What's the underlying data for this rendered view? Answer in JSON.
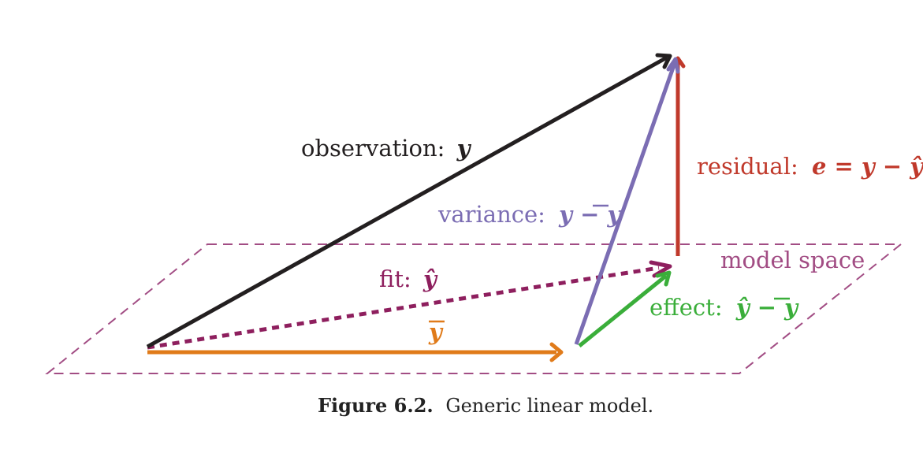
{
  "colors": {
    "observation": "#231f20",
    "variance": "#7b6db3",
    "residual": "#c0392b",
    "fit": "#8e1f5e",
    "mean": "#e07b1a",
    "effect": "#3aae3a",
    "plane": "#a24d84",
    "caption": "#222222"
  },
  "labels": {
    "observation_text": "observation:",
    "observation_math": "y",
    "variance_text": "variance:",
    "variance_math": "y − y",
    "residual_text": "residual:",
    "residual_math": "e = y − ŷ",
    "model_space": "model space",
    "fit_text": "fit:",
    "fit_math": "ŷ",
    "effect_text": "effect:",
    "effect_math": "ŷ − y",
    "mean_math": "y"
  },
  "caption": {
    "figure_number": "Figure 6.2.",
    "text": "Generic linear model."
  }
}
